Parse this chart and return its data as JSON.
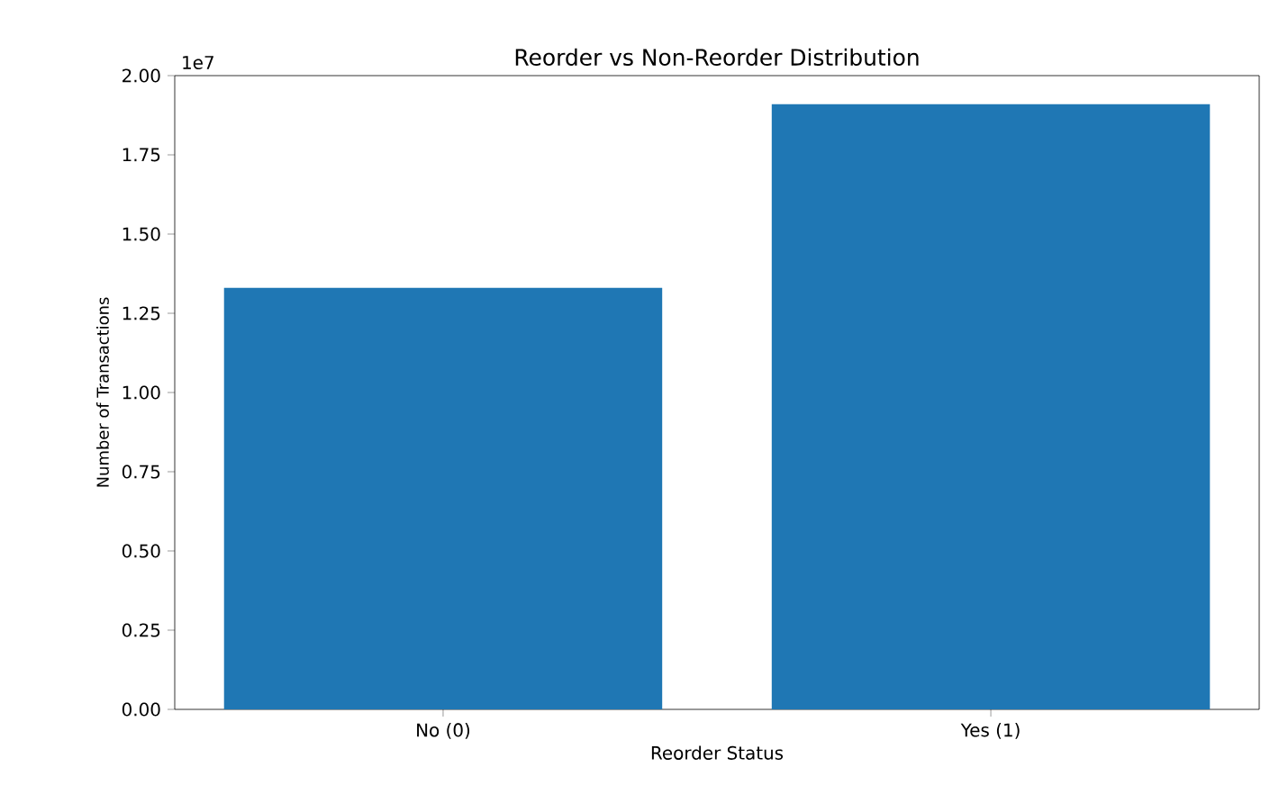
{
  "chart_data": {
    "type": "bar",
    "title": "Reorder vs Non-Reorder Distribution",
    "xlabel": "Reorder Status",
    "ylabel": "Number of Transactions",
    "categories": [
      "No (0)",
      "Yes (1)"
    ],
    "values": [
      1.33,
      1.91
    ],
    "color": "#1f77b4",
    "ylim": [
      0,
      2
    ],
    "yticks": [
      {
        "value": 0,
        "label": "0.00"
      },
      {
        "value": 0.25,
        "label": "0.25"
      },
      {
        "value": 0.5,
        "label": "0.50"
      },
      {
        "value": 0.75,
        "label": "0.75"
      },
      {
        "value": 1,
        "label": "1.00"
      },
      {
        "value": 1.25,
        "label": "1.25"
      },
      {
        "value": 1.5,
        "label": "1.50"
      },
      {
        "value": 1.75,
        "label": "1.75"
      },
      {
        "value": 2,
        "label": "2.00"
      }
    ],
    "annotations": [
      "1e7"
    ]
  }
}
